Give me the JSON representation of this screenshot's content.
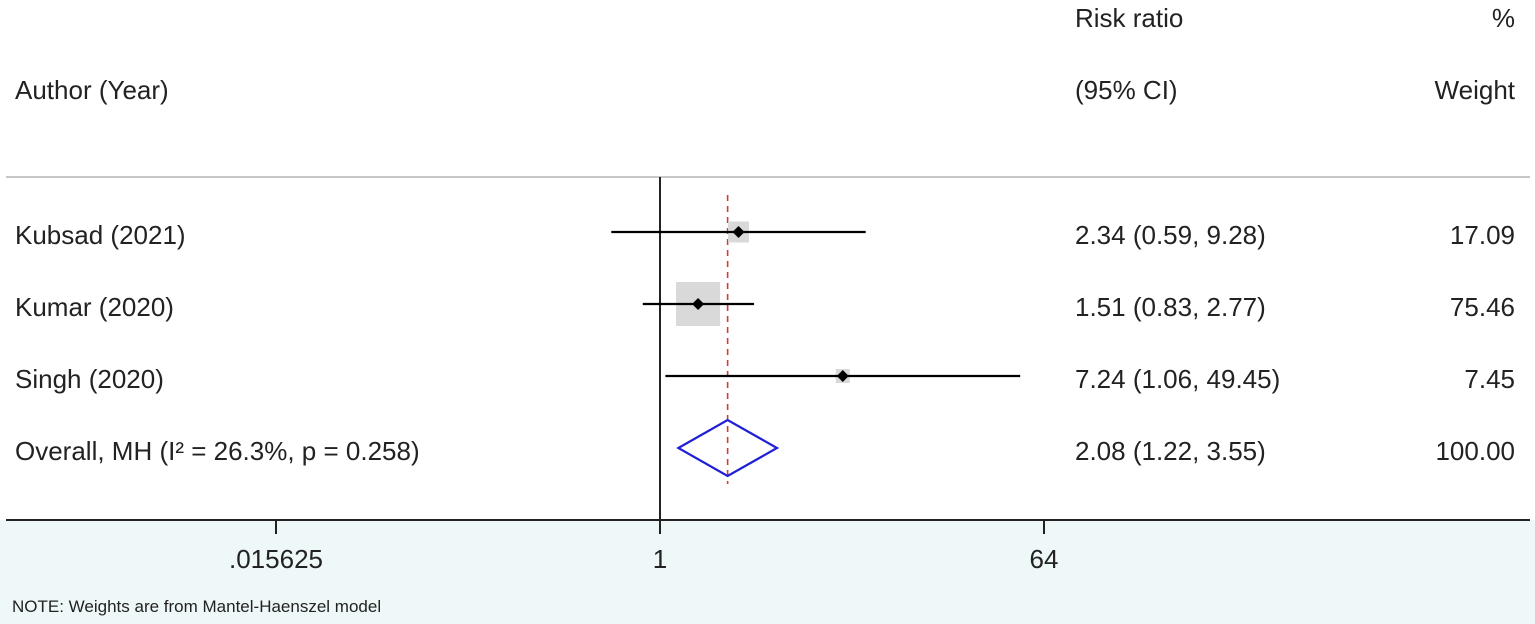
{
  "chart_data": {
    "type": "forest",
    "columns": {
      "author_header": "Author (Year)",
      "effect_header_line1": "Risk ratio",
      "effect_header_line2": "(95% CI)",
      "weight_header_line1": "%",
      "weight_header_line2": "Weight"
    },
    "studies": [
      {
        "label": "Kubsad (2021)",
        "rr": 2.34,
        "lower": 0.59,
        "upper": 9.28,
        "ci_text": "2.34 (0.59, 9.28)",
        "weight": 17.09,
        "weight_text": "17.09"
      },
      {
        "label": "Kumar (2020)",
        "rr": 1.51,
        "lower": 0.83,
        "upper": 2.77,
        "ci_text": "1.51 (0.83, 2.77)",
        "weight": 75.46,
        "weight_text": "75.46"
      },
      {
        "label": "Singh (2020)",
        "rr": 7.24,
        "lower": 1.06,
        "upper": 49.45,
        "ci_text": "7.24 (1.06, 49.45)",
        "weight": 7.45,
        "weight_text": "7.45"
      }
    ],
    "overall": {
      "label": "Overall, MH (I² = 26.3%, p = 0.258)",
      "rr": 2.08,
      "lower": 1.22,
      "upper": 3.55,
      "ci_text": "2.08 (1.22, 3.55)",
      "weight_text": "100.00"
    },
    "x_axis": {
      "scale": "log",
      "ticks": [
        0.015625,
        1,
        64
      ],
      "tick_labels": [
        ".015625",
        "1",
        "64"
      ],
      "null_value": 1
    },
    "note": "NOTE: Weights are from Mantel-Haenszel model",
    "colors": {
      "ci_line": "#000000",
      "point": "#000000",
      "weight_box": "#d9d9d9",
      "overall_diamond": "#1f1fd6",
      "overall_line": "#d23a3a",
      "null_line": "#222222",
      "header_rule": "#c8c8c8"
    }
  }
}
